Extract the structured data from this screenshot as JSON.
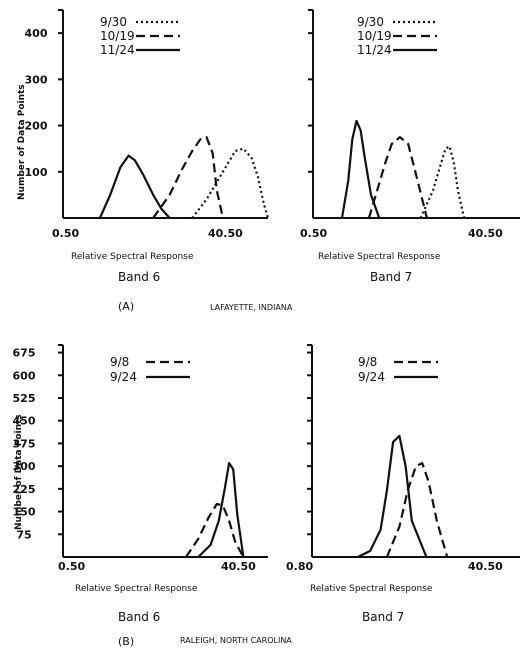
{
  "figure": {
    "panel_a_label": "(A)",
    "panel_a_location": "LAFAYETTE, INDIANA",
    "panel_b_label": "(B)",
    "panel_b_location": "RALEIGH, NORTH CAROLINA"
  },
  "chart_data": [
    {
      "type": "line",
      "panel": "A",
      "title": "Band 6",
      "xlabel": "Relative Spectral Response",
      "ylabel": "Number of Data Points",
      "x_tick_labels": [
        "0.50",
        "40.50"
      ],
      "y_ticks": [
        100,
        200,
        300,
        400
      ],
      "xlim": [
        0,
        100
      ],
      "ylim": [
        0,
        450
      ],
      "legend": "top-left",
      "series": [
        {
          "name": "9/30",
          "dash": "dotted",
          "x": [
            63,
            70,
            78,
            84,
            88,
            92,
            95,
            98,
            100
          ],
          "y": [
            0,
            40,
            100,
            145,
            150,
            130,
            90,
            30,
            0
          ]
        },
        {
          "name": "10/19",
          "dash": "dashed",
          "x": [
            44,
            52,
            58,
            63,
            67,
            70,
            73,
            75,
            78
          ],
          "y": [
            0,
            50,
            105,
            145,
            170,
            175,
            140,
            60,
            0
          ]
        },
        {
          "name": "11/24",
          "dash": "solid",
          "x": [
            18,
            23,
            28,
            32,
            35,
            39,
            44,
            48,
            52
          ],
          "y": [
            0,
            50,
            110,
            135,
            125,
            95,
            50,
            20,
            0
          ]
        }
      ]
    },
    {
      "type": "line",
      "panel": "A",
      "title": "Band 7",
      "xlabel": "Relative Spectral Response",
      "ylabel": "",
      "x_tick_labels": [
        "0.50",
        "40.50"
      ],
      "y_ticks": [
        100,
        200,
        300,
        400
      ],
      "xlim": [
        0,
        100
      ],
      "ylim": [
        0,
        450
      ],
      "legend": "top-left",
      "series": [
        {
          "name": "9/30",
          "dash": "dotted",
          "x": [
            52,
            58,
            62,
            64,
            66,
            68,
            70,
            73
          ],
          "y": [
            0,
            60,
            120,
            150,
            155,
            120,
            60,
            0
          ]
        },
        {
          "name": "10/19",
          "dash": "dashed",
          "x": [
            27,
            31,
            35,
            38,
            42,
            46,
            50,
            55
          ],
          "y": [
            0,
            60,
            120,
            160,
            175,
            160,
            90,
            0
          ]
        },
        {
          "name": "11/24",
          "dash": "solid",
          "x": [
            14,
            17,
            19,
            21,
            23,
            25,
            28,
            32
          ],
          "y": [
            0,
            80,
            170,
            210,
            190,
            130,
            50,
            0
          ]
        }
      ]
    },
    {
      "type": "line",
      "panel": "B",
      "title": "Band 6",
      "xlabel": "Relative Spectral Response",
      "ylabel": "Number of Data Points",
      "x_tick_labels": [
        "0.50",
        "40.50"
      ],
      "y_ticks": [
        75,
        150,
        225,
        300,
        375,
        450,
        525,
        600,
        675
      ],
      "xlim": [
        0,
        100
      ],
      "ylim": [
        0,
        700
      ],
      "legend": "top-left",
      "series": [
        {
          "name": "9/8",
          "dash": "dashed",
          "x": [
            60,
            66,
            71,
            75,
            78,
            81,
            84,
            88
          ],
          "y": [
            0,
            60,
            130,
            175,
            170,
            120,
            50,
            0
          ]
        },
        {
          "name": "9/24",
          "dash": "solid",
          "x": [
            66,
            72,
            76,
            79,
            81,
            83,
            85,
            88
          ],
          "y": [
            0,
            40,
            120,
            230,
            310,
            290,
            140,
            0
          ]
        }
      ]
    },
    {
      "type": "line",
      "panel": "B",
      "title": "Band 7",
      "xlabel": "Relative Spectral Response",
      "ylabel": "",
      "x_tick_labels": [
        "0.80",
        "40.50"
      ],
      "y_ticks": [
        75,
        150,
        225,
        300,
        375,
        450,
        525,
        600,
        675
      ],
      "xlim": [
        0,
        100
      ],
      "ylim": [
        0,
        700
      ],
      "legend": "top-left",
      "series": [
        {
          "name": "9/8",
          "dash": "dashed",
          "x": [
            36,
            42,
            46,
            50,
            53,
            56,
            60,
            65
          ],
          "y": [
            0,
            100,
            220,
            300,
            310,
            250,
            120,
            0
          ]
        },
        {
          "name": "9/24",
          "dash": "solid",
          "x": [
            22,
            28,
            33,
            36,
            39,
            42,
            45,
            48,
            55
          ],
          "y": [
            0,
            20,
            90,
            220,
            380,
            400,
            300,
            120,
            0
          ]
        }
      ]
    }
  ]
}
